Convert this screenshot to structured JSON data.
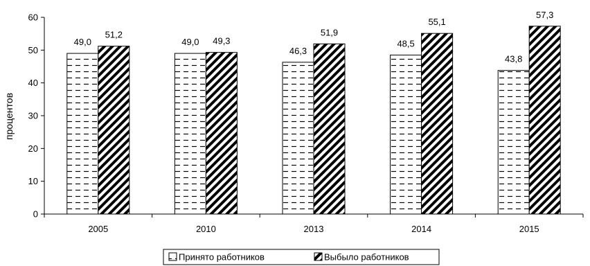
{
  "chart_data": {
    "type": "bar",
    "categories": [
      "2005",
      "2010",
      "2013",
      "2014",
      "2015"
    ],
    "series": [
      {
        "name": "Принято работников",
        "values": [
          49.0,
          49.0,
          46.3,
          48.5,
          43.8
        ],
        "labels": [
          "49,0",
          "49,0",
          "46,3",
          "48,5",
          "43,8"
        ],
        "pattern": "dashes"
      },
      {
        "name": "Выбыло работников",
        "values": [
          51.2,
          49.3,
          51.9,
          55.1,
          57.3
        ],
        "labels": [
          "51,2",
          "49,3",
          "51,9",
          "55,1",
          "57,3"
        ],
        "pattern": "diagonal"
      }
    ],
    "title": "",
    "xlabel": "",
    "ylabel": "процентов",
    "ylim": [
      0,
      60
    ],
    "yticks": [
      "0",
      "10",
      "20",
      "30",
      "40",
      "50",
      "60"
    ],
    "grid": false,
    "legend": "bottom",
    "colors": {
      "bar_fill": "#ffffff",
      "bar_stroke": "#000000"
    }
  }
}
